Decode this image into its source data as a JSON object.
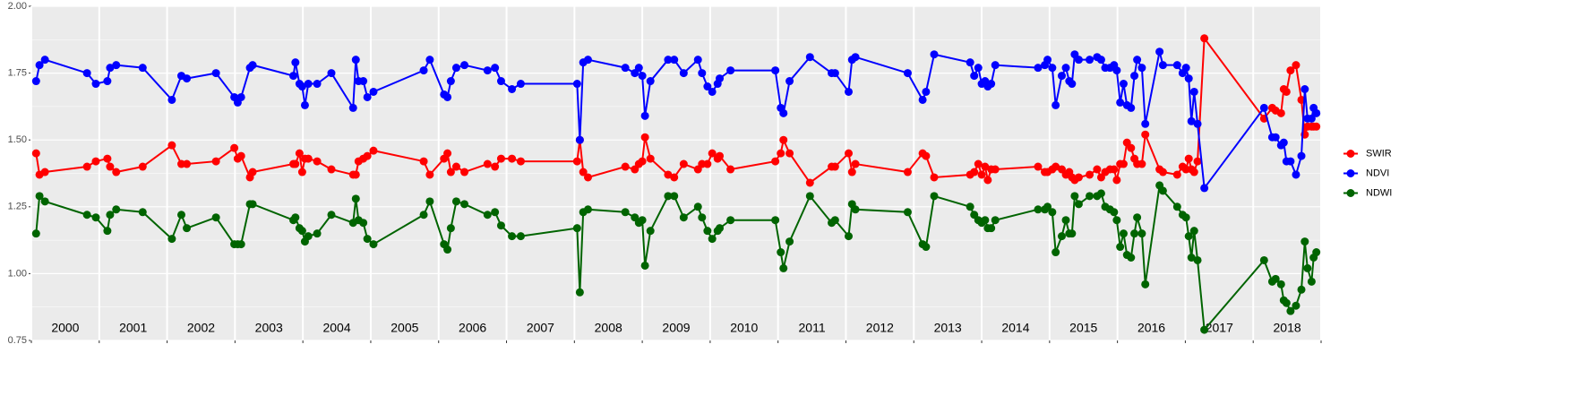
{
  "chart_data": {
    "type": "line",
    "x": [
      2000.07,
      2000.12,
      2000.2,
      2000.82,
      2000.95,
      2001.12,
      2001.16,
      2001.25,
      2001.64,
      2002.07,
      2002.21,
      2002.29,
      2002.72,
      2002.99,
      2003.04,
      2003.09,
      2003.22,
      2003.26,
      2003.86,
      2003.89,
      2003.95,
      2003.99,
      2004.03,
      2004.08,
      2004.21,
      2004.42,
      2004.74,
      2004.78,
      2004.82,
      2004.89,
      2004.95,
      2005.04,
      2005.78,
      2005.87,
      2006.08,
      2006.13,
      2006.18,
      2006.26,
      2006.38,
      2006.72,
      2006.83,
      2006.92,
      2007.08,
      2007.21,
      2008.04,
      2008.08,
      2008.13,
      2008.2,
      2008.75,
      2008.89,
      2008.95,
      2009.0,
      2009.04,
      2009.12,
      2009.38,
      2009.47,
      2009.61,
      2009.82,
      2009.88,
      2009.96,
      2010.03,
      2010.11,
      2010.14,
      2010.3,
      2010.96,
      2011.04,
      2011.08,
      2011.17,
      2011.47,
      2011.79,
      2011.84,
      2012.04,
      2012.09,
      2012.14,
      2012.91,
      2013.13,
      2013.18,
      2013.3,
      2013.83,
      2013.89,
      2013.95,
      2014.0,
      2014.05,
      2014.09,
      2014.14,
      2014.2,
      2014.83,
      2014.93,
      2014.97,
      2015.04,
      2015.09,
      2015.18,
      2015.24,
      2015.29,
      2015.33,
      2015.37,
      2015.43,
      2015.59,
      2015.7,
      2015.76,
      2015.82,
      2015.89,
      2015.95,
      2015.99,
      2016.04,
      2016.09,
      2016.14,
      2016.2,
      2016.25,
      2016.29,
      2016.36,
      2016.41,
      2016.62,
      2016.67,
      2016.88,
      2016.96,
      2017.01,
      2017.05,
      2017.09,
      2017.13,
      2017.18,
      2017.28,
      2018.16,
      2018.28,
      2018.33,
      2018.41,
      2018.45,
      2018.49,
      2018.55,
      2018.63,
      2018.71,
      2018.76,
      2018.8,
      2018.86,
      2018.89,
      2018.93
    ],
    "series": [
      {
        "name": "SWIR",
        "color": "#ff0000",
        "values": [
          1.45,
          1.37,
          1.38,
          1.4,
          1.42,
          1.43,
          1.4,
          1.38,
          1.4,
          1.48,
          1.41,
          1.41,
          1.42,
          1.47,
          1.43,
          1.44,
          1.36,
          1.38,
          1.41,
          1.41,
          1.45,
          1.38,
          1.43,
          1.43,
          1.42,
          1.39,
          1.37,
          1.37,
          1.42,
          1.43,
          1.44,
          1.46,
          1.42,
          1.37,
          1.43,
          1.45,
          1.38,
          1.4,
          1.38,
          1.41,
          1.4,
          1.43,
          1.43,
          1.42,
          1.42,
          1.5,
          1.38,
          1.36,
          1.4,
          1.39,
          1.41,
          1.42,
          1.51,
          1.43,
          1.37,
          1.36,
          1.41,
          1.39,
          1.41,
          1.41,
          1.45,
          1.43,
          1.44,
          1.39,
          1.42,
          1.45,
          1.5,
          1.45,
          1.34,
          1.4,
          1.4,
          1.45,
          1.38,
          1.41,
          1.38,
          1.45,
          1.44,
          1.36,
          1.37,
          1.38,
          1.41,
          1.37,
          1.4,
          1.35,
          1.39,
          1.39,
          1.4,
          1.38,
          1.38,
          1.39,
          1.4,
          1.39,
          1.37,
          1.38,
          1.36,
          1.35,
          1.36,
          1.37,
          1.39,
          1.36,
          1.38,
          1.39,
          1.39,
          1.35,
          1.41,
          1.41,
          1.49,
          1.47,
          1.43,
          1.41,
          1.41,
          1.52,
          1.39,
          1.38,
          1.37,
          1.4,
          1.39,
          1.43,
          1.39,
          1.38,
          1.42,
          1.88,
          1.58,
          1.62,
          1.61,
          1.6,
          1.69,
          1.68,
          1.76,
          1.78,
          1.65,
          1.52,
          1.55,
          1.55,
          1.55,
          1.55
        ]
      },
      {
        "name": "NDVI",
        "color": "#0000ff",
        "values": [
          1.72,
          1.78,
          1.8,
          1.75,
          1.71,
          1.72,
          1.77,
          1.78,
          1.77,
          1.65,
          1.74,
          1.73,
          1.75,
          1.66,
          1.64,
          1.66,
          1.77,
          1.78,
          1.74,
          1.79,
          1.71,
          1.7,
          1.63,
          1.71,
          1.71,
          1.75,
          1.62,
          1.8,
          1.72,
          1.72,
          1.66,
          1.68,
          1.76,
          1.8,
          1.67,
          1.66,
          1.72,
          1.77,
          1.78,
          1.76,
          1.77,
          1.72,
          1.69,
          1.71,
          1.71,
          1.5,
          1.79,
          1.8,
          1.77,
          1.75,
          1.77,
          1.74,
          1.59,
          1.72,
          1.8,
          1.8,
          1.75,
          1.8,
          1.75,
          1.7,
          1.68,
          1.71,
          1.73,
          1.76,
          1.76,
          1.62,
          1.6,
          1.72,
          1.81,
          1.75,
          1.75,
          1.68,
          1.8,
          1.81,
          1.75,
          1.65,
          1.68,
          1.82,
          1.79,
          1.74,
          1.77,
          1.71,
          1.72,
          1.7,
          1.71,
          1.78,
          1.77,
          1.78,
          1.8,
          1.77,
          1.63,
          1.74,
          1.77,
          1.72,
          1.71,
          1.82,
          1.8,
          1.8,
          1.81,
          1.8,
          1.77,
          1.77,
          1.78,
          1.76,
          1.64,
          1.71,
          1.63,
          1.62,
          1.74,
          1.8,
          1.77,
          1.56,
          1.83,
          1.78,
          1.78,
          1.75,
          1.77,
          1.73,
          1.57,
          1.68,
          1.56,
          1.32,
          1.62,
          1.51,
          1.51,
          1.48,
          1.49,
          1.42,
          1.42,
          1.37,
          1.44,
          1.69,
          1.58,
          1.58,
          1.62,
          1.6
        ]
      },
      {
        "name": "NDWI",
        "color": "#006400",
        "values": [
          1.15,
          1.29,
          1.27,
          1.22,
          1.21,
          1.16,
          1.22,
          1.24,
          1.23,
          1.13,
          1.22,
          1.17,
          1.21,
          1.11,
          1.11,
          1.11,
          1.26,
          1.26,
          1.2,
          1.21,
          1.17,
          1.16,
          1.12,
          1.14,
          1.15,
          1.22,
          1.19,
          1.28,
          1.2,
          1.19,
          1.13,
          1.11,
          1.22,
          1.27,
          1.11,
          1.09,
          1.17,
          1.27,
          1.26,
          1.22,
          1.23,
          1.18,
          1.14,
          1.14,
          1.17,
          0.93,
          1.23,
          1.24,
          1.23,
          1.21,
          1.19,
          1.2,
          1.03,
          1.16,
          1.29,
          1.29,
          1.21,
          1.25,
          1.21,
          1.16,
          1.13,
          1.16,
          1.17,
          1.2,
          1.2,
          1.08,
          1.02,
          1.12,
          1.29,
          1.19,
          1.2,
          1.14,
          1.26,
          1.24,
          1.23,
          1.11,
          1.1,
          1.29,
          1.25,
          1.22,
          1.2,
          1.19,
          1.2,
          1.17,
          1.17,
          1.2,
          1.24,
          1.24,
          1.25,
          1.23,
          1.08,
          1.14,
          1.2,
          1.15,
          1.15,
          1.29,
          1.26,
          1.29,
          1.29,
          1.3,
          1.25,
          1.24,
          1.23,
          1.2,
          1.1,
          1.15,
          1.07,
          1.06,
          1.15,
          1.21,
          1.15,
          0.96,
          1.33,
          1.31,
          1.25,
          1.22,
          1.21,
          1.14,
          1.06,
          1.16,
          1.05,
          0.79,
          1.05,
          0.97,
          0.98,
          0.96,
          0.9,
          0.89,
          0.86,
          0.88,
          0.94,
          1.12,
          1.02,
          0.97,
          1.06,
          1.08
        ]
      }
    ],
    "xlim": [
      2000,
      2019
    ],
    "xticks": [
      2000,
      2001,
      2002,
      2003,
      2004,
      2005,
      2006,
      2007,
      2008,
      2009,
      2010,
      2011,
      2012,
      2013,
      2014,
      2015,
      2016,
      2017,
      2018,
      2019
    ],
    "year_labels": [
      "2000",
      "2001",
      "2002",
      "2003",
      "2004",
      "2005",
      "2006",
      "2007",
      "2008",
      "2009",
      "2010",
      "2011",
      "2012",
      "2013",
      "2014",
      "2015",
      "2016",
      "2017",
      "2018"
    ],
    "ylim": [
      0.75,
      2.0
    ],
    "yticks": [
      {
        "value": 0.75,
        "label": "0.75"
      },
      {
        "value": 1.0,
        "label": "1.00"
      },
      {
        "value": 1.25,
        "label": "1.25"
      },
      {
        "value": 1.5,
        "label": "1.50"
      },
      {
        "value": 1.75,
        "label": "1.75"
      },
      {
        "value": 2.0,
        "label": "2.00"
      }
    ],
    "grid": true,
    "legend": "right"
  }
}
